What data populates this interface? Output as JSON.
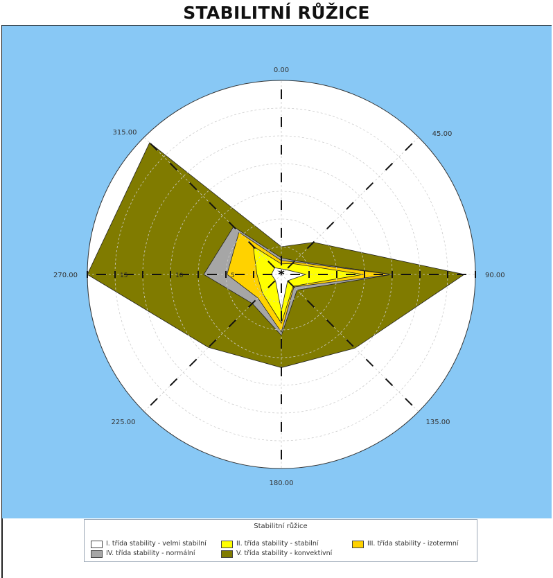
{
  "title": "STABILITNÍ RŮŽICE",
  "colors": {
    "panel_background": "#88c8f5",
    "plot_background": "#ffffff",
    "grid": "#cccccc",
    "axis_ticks": "#111111"
  },
  "legend": {
    "title": "Stabilitní růžice",
    "items": [
      {
        "label": "I. třída stability - velmi stabilní",
        "color": "#ffffff"
      },
      {
        "label": "II. třída stability - stabilní",
        "color": "#ffff00"
      },
      {
        "label": "III. třída stability - izotermní",
        "color": "#ffd200"
      },
      {
        "label": "IV. třída stability - normální",
        "color": "#a6a6a6"
      },
      {
        "label": "V. třída stability - konvektivní",
        "color": "#807b00"
      }
    ]
  },
  "chart_data": {
    "type": "polar-area",
    "title": "STABILITNÍ RŮŽICE",
    "angle_labels": [
      "0.00",
      "45.00",
      "90.00",
      "135.00",
      "180.00",
      "225.00",
      "270.00",
      "315.00"
    ],
    "angles_deg": [
      0,
      45,
      90,
      135,
      180,
      225,
      270,
      315
    ],
    "radial_tick_labels": [
      "5",
      "10",
      "15"
    ],
    "r_max": 17.5,
    "r_tick_step": 2.5,
    "grid": true,
    "legend_position": "bottom",
    "series": [
      {
        "name": "V. třída stability - konvektivní",
        "color": "#807b00",
        "values": [
          2.5,
          4.1,
          16.5,
          9.4,
          8.4,
          9.3,
          17.5,
          16.8
        ]
      },
      {
        "name": "IV. třída stability - normální",
        "color": "#a6a6a6",
        "values": [
          1.5,
          1.75,
          10,
          2.0,
          5.5,
          3.7,
          7.0,
          6.1
        ]
      },
      {
        "name": "III. třída stability - izotermní",
        "color": "#ffd200",
        "values": [
          1.25,
          1.6,
          9.9,
          1.6,
          5.2,
          3.0,
          4.9,
          5.4
        ]
      },
      {
        "name": "II. třída stability - stabilní",
        "color": "#ffff00",
        "values": [
          0.95,
          1.4,
          7.4,
          1.5,
          4.4,
          2.4,
          2.2,
          3.6
        ]
      },
      {
        "name": "I. třída stability - velmi stabilní",
        "color": "#ffffff",
        "values": [
          0.5,
          0.6,
          2.2,
          0.8,
          3.3,
          0.75,
          0.9,
          0.85
        ]
      }
    ]
  }
}
